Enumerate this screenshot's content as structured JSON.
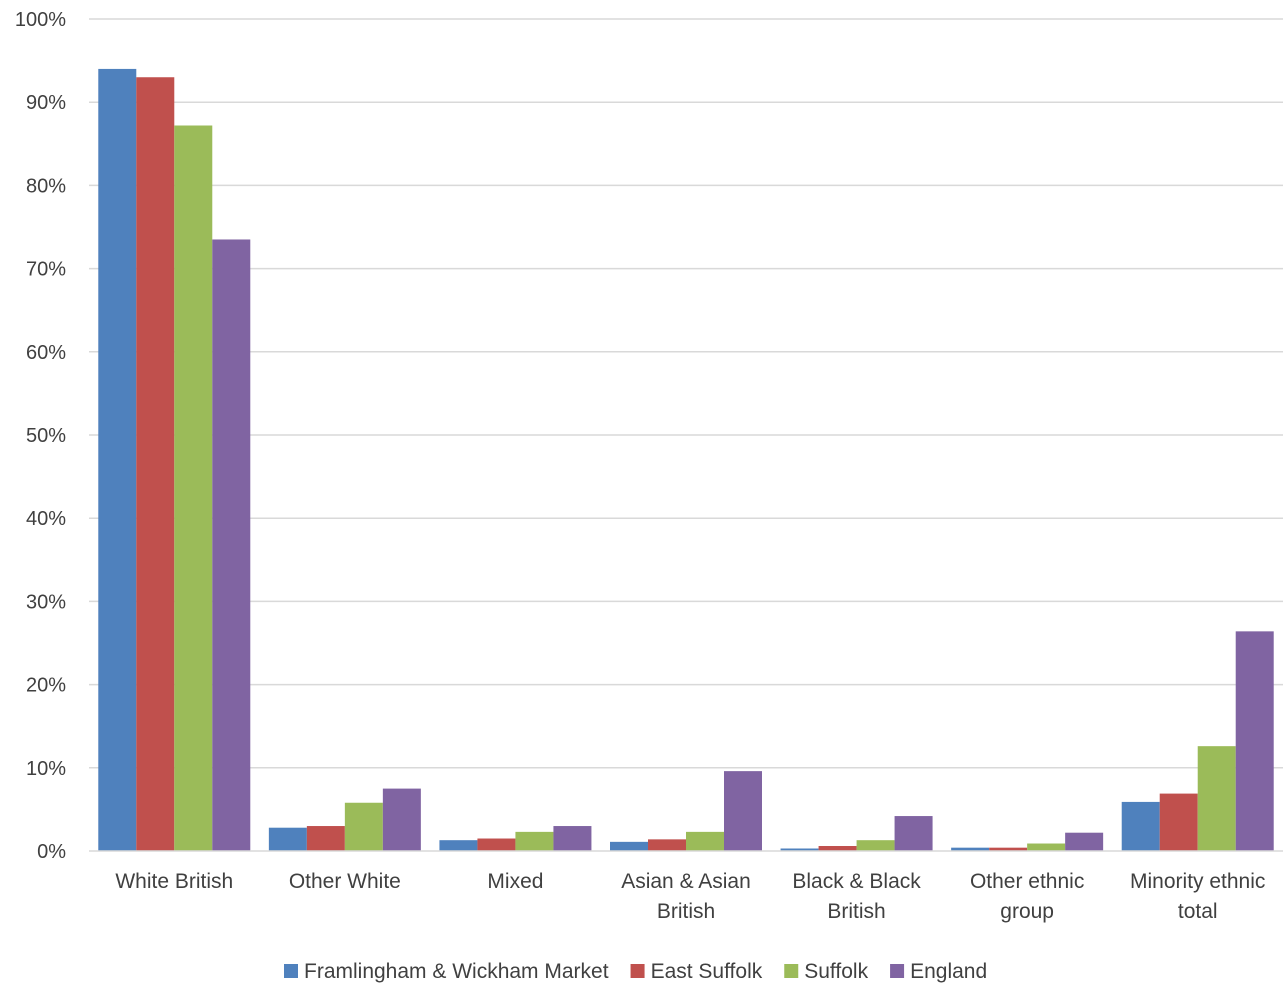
{
  "chart_data": {
    "type": "bar",
    "title": "",
    "xlabel": "",
    "ylabel": "",
    "ylim": [
      0,
      100
    ],
    "y_ticks": [
      "0%",
      "10%",
      "20%",
      "30%",
      "40%",
      "50%",
      "60%",
      "70%",
      "80%",
      "90%",
      "100%"
    ],
    "categories": [
      "White British",
      "Other White",
      "Mixed",
      "Asian & Asian British",
      "Black & Black British",
      "Other ethnic group",
      "Minority ethnic total"
    ],
    "category_lines": [
      [
        "White British"
      ],
      [
        "Other White"
      ],
      [
        "Mixed"
      ],
      [
        "Asian & Asian",
        "British"
      ],
      [
        "Black & Black",
        "British"
      ],
      [
        "Other ethnic",
        "group"
      ],
      [
        "Minority ethnic",
        "total"
      ]
    ],
    "series": [
      {
        "name": "Framlingham & Wickham Market",
        "color": "#4f81bd",
        "values": [
          94.0,
          2.8,
          1.3,
          1.1,
          0.3,
          0.4,
          5.9
        ]
      },
      {
        "name": "East Suffolk",
        "color": "#c0504d",
        "values": [
          93.0,
          3.0,
          1.5,
          1.4,
          0.6,
          0.4,
          6.9
        ]
      },
      {
        "name": "Suffolk",
        "color": "#9bbb59",
        "values": [
          87.2,
          5.8,
          2.3,
          2.3,
          1.3,
          0.9,
          12.6
        ]
      },
      {
        "name": "England",
        "color": "#8064a2",
        "values": [
          73.5,
          7.5,
          3.0,
          9.6,
          4.2,
          2.2,
          26.4
        ]
      }
    ],
    "grid": true,
    "legend_position": "bottom"
  }
}
